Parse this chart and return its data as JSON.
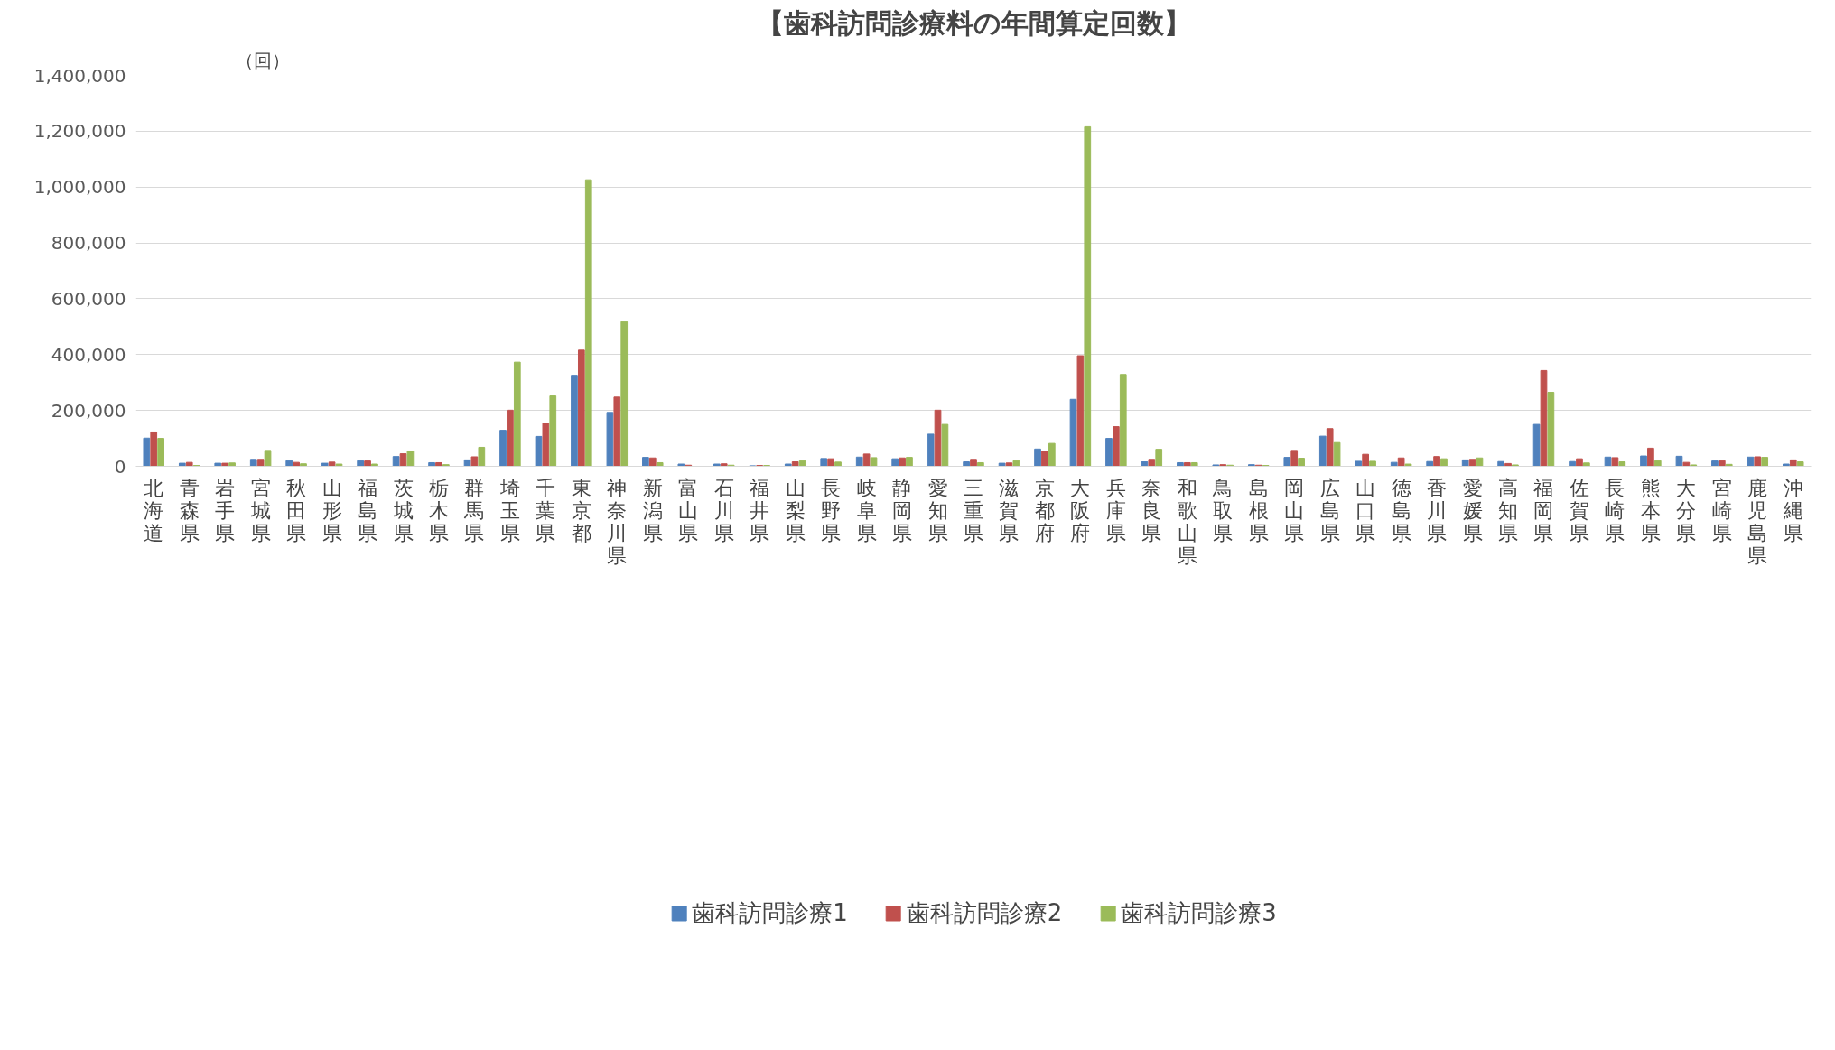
{
  "chart_data": {
    "type": "bar",
    "title": "【歯科訪問診療料の年間算定回数】",
    "ylabel": "（回）",
    "categories": [
      "北海道",
      "青森県",
      "岩手県",
      "宮城県",
      "秋田県",
      "山形県",
      "福島県",
      "茨城県",
      "栃木県",
      "群馬県",
      "埼玉県",
      "千葉県",
      "東京都",
      "神奈川県",
      "新潟県",
      "富山県",
      "石川県",
      "福井県",
      "山梨県",
      "長野県",
      "岐阜県",
      "静岡県",
      "愛知県",
      "三重県",
      "滋賀県",
      "京都府",
      "大阪府",
      "兵庫県",
      "奈良県",
      "和歌山県",
      "鳥取県",
      "島根県",
      "岡山県",
      "広島県",
      "山口県",
      "徳島県",
      "香川県",
      "愛媛県",
      "高知県",
      "福岡県",
      "佐賀県",
      "長崎県",
      "熊本県",
      "大分県",
      "宮崎県",
      "鹿児島県",
      "沖縄県"
    ],
    "series": [
      {
        "name": "歯科訪問診療1",
        "color": "#4f81bd",
        "values": [
          101000,
          11000,
          11000,
          25000,
          20000,
          11000,
          20000,
          35000,
          13000,
          23000,
          129000,
          107000,
          326000,
          193000,
          32000,
          8000,
          8000,
          2000,
          8000,
          28000,
          33000,
          27000,
          115000,
          16000,
          11000,
          62000,
          240000,
          100000,
          16000,
          13000,
          5000,
          6000,
          32000,
          108000,
          18000,
          14000,
          17000,
          23000,
          17000,
          150000,
          17000,
          33000,
          37000,
          36000,
          19000,
          33000,
          8000
        ]
      },
      {
        "name": "歯科訪問診療2",
        "color": "#c0504d",
        "values": [
          123000,
          14000,
          11000,
          25000,
          14000,
          15000,
          19000,
          45000,
          13000,
          34000,
          201000,
          155000,
          416000,
          248000,
          30000,
          4000,
          9000,
          3000,
          16000,
          27000,
          44000,
          30000,
          201000,
          25000,
          12000,
          54000,
          396000,
          142000,
          25000,
          13000,
          6000,
          4000,
          57000,
          135000,
          43000,
          30000,
          35000,
          25000,
          10000,
          343000,
          27000,
          31000,
          65000,
          14000,
          20000,
          34000,
          23000
        ]
      },
      {
        "name": "歯科訪問診療3",
        "color": "#9bbb59",
        "values": [
          100000,
          3000,
          12000,
          57000,
          9000,
          8000,
          8000,
          55000,
          6000,
          68000,
          373000,
          252000,
          1026000,
          518000,
          13000,
          null,
          4000,
          3000,
          19000,
          15000,
          31000,
          32000,
          150000,
          13000,
          20000,
          82000,
          1216000,
          329000,
          61000,
          13000,
          4000,
          3000,
          29000,
          85000,
          18000,
          8000,
          27000,
          30000,
          5000,
          265000,
          12000,
          16000,
          20000,
          5000,
          7000,
          32000,
          16000
        ]
      }
    ],
    "ylim": [
      0,
      1400000
    ],
    "yticks": [
      {
        "value": 0,
        "label": "0"
      },
      {
        "value": 200000,
        "label": "200,000"
      },
      {
        "value": 400000,
        "label": "400,000"
      },
      {
        "value": 600000,
        "label": "600,000"
      },
      {
        "value": 800000,
        "label": "800,000"
      },
      {
        "value": 1000000,
        "label": "1,000,000"
      },
      {
        "value": 1200000,
        "label": "1,200,000"
      },
      {
        "value": 1400000,
        "label": "1,400,000"
      }
    ],
    "grid": "y",
    "legend": "bottom"
  }
}
